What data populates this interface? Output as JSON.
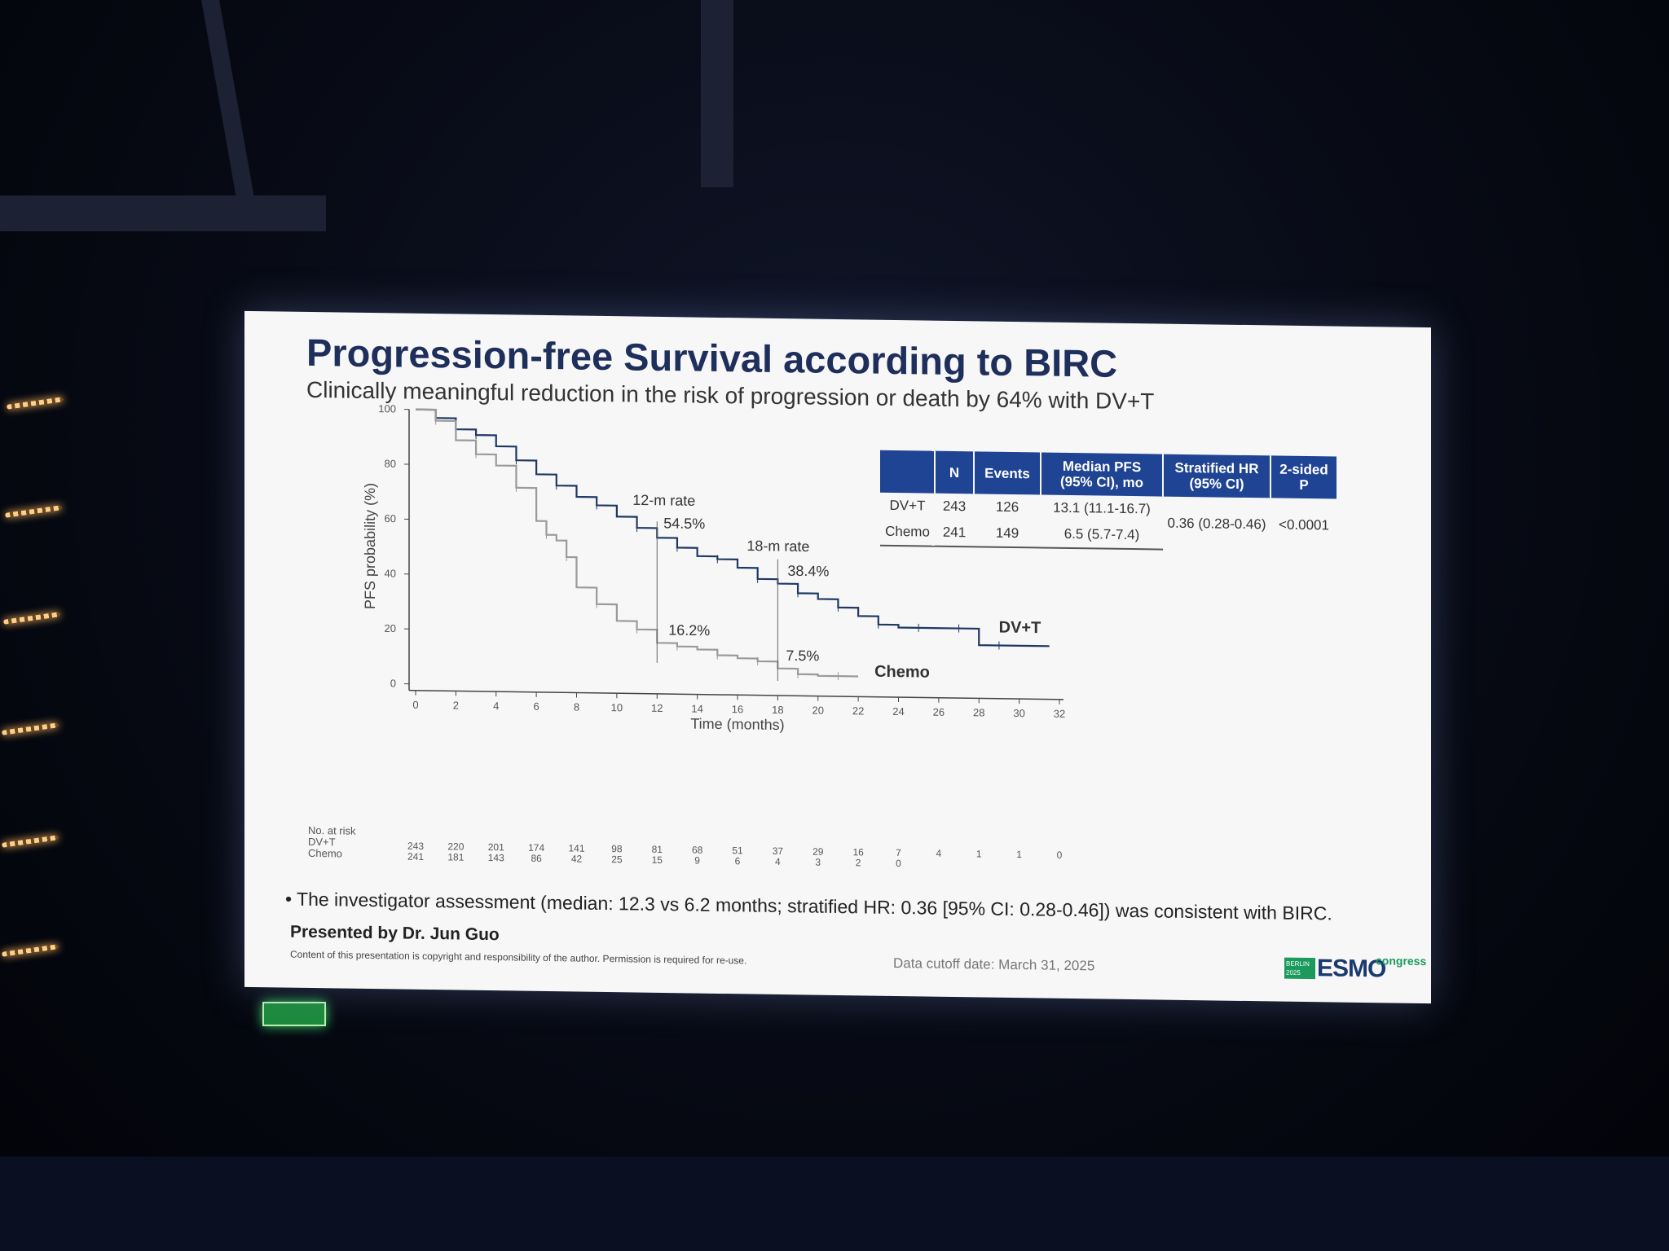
{
  "slide": {
    "title": "Progression-free Survival according to BIRC",
    "subtitle": "Clinically meaningful reduction in the risk of progression or death by 64% with DV+T",
    "bullet": "• The investigator assessment (median: 12.3 vs 6.2 months; stratified HR: 0.36 [95% CI: 0.28-0.46]) was consistent with BIRC.",
    "presenter": "Presented by Dr. Jun Guo",
    "copyright": "Content of this presentation is copyright and responsibility of the author. Permission is required for re-use.",
    "cutoff": "Data cutoff date: March 31, 2025",
    "logo": {
      "tag": "BERLIN 2025",
      "word": "ESMO",
      "congress": "congress"
    }
  },
  "summary_table": {
    "headers": [
      "",
      "N",
      "Events",
      "Median PFS (95% CI), mo",
      "Stratified HR (95% CI)",
      "2-sided P"
    ],
    "rows": [
      {
        "arm": "DV+T",
        "n": "243",
        "events": "126",
        "median": "13.1 (11.1-16.7)"
      },
      {
        "arm": "Chemo",
        "n": "241",
        "events": "149",
        "median": "6.5 (5.7-7.4)"
      }
    ],
    "hr": "0.36 (0.28-0.46)",
    "p": "<0.0001",
    "header_color": "#1f4494"
  },
  "risk_table": {
    "title": "No. at risk",
    "arms": [
      "DV+T",
      "Chemo"
    ],
    "times": [
      0,
      2,
      4,
      6,
      8,
      10,
      12,
      14,
      16,
      18,
      20,
      22,
      24,
      26,
      28,
      30,
      32
    ],
    "dvt": [
      "243",
      "220",
      "201",
      "174",
      "141",
      "98",
      "81",
      "68",
      "51",
      "37",
      "29",
      "16",
      "7",
      "4",
      "1",
      "1",
      "0"
    ],
    "chemo": [
      "241",
      "181",
      "143",
      "86",
      "42",
      "25",
      "15",
      "9",
      "6",
      "4",
      "3",
      "2",
      "0",
      "",
      "",
      "",
      ""
    ]
  },
  "chart_data": {
    "type": "line",
    "xlabel": "Time (months)",
    "ylabel": "PFS probability (%)",
    "xlim": [
      0,
      32
    ],
    "ylim": [
      0,
      100
    ],
    "xticks": [
      0,
      2,
      4,
      6,
      8,
      10,
      12,
      14,
      16,
      18,
      20,
      22,
      24,
      26,
      28,
      30,
      32
    ],
    "yticks": [
      0,
      20,
      40,
      60,
      80,
      100
    ],
    "series": [
      {
        "name": "DV+T",
        "color": "#1f3864",
        "x": [
          0,
          1,
          2,
          3,
          4,
          5,
          6,
          7,
          8,
          9,
          10,
          11,
          12,
          13,
          14,
          15,
          16,
          17,
          18,
          19,
          20,
          21,
          22,
          23,
          24,
          25,
          26,
          27,
          28,
          29,
          31.5
        ],
        "y": [
          100,
          97,
          93,
          91,
          87,
          82,
          77,
          73,
          69,
          66,
          62,
          58,
          54.5,
          51,
          48,
          47,
          44,
          40,
          38.4,
          35,
          33,
          30,
          27,
          24,
          23,
          23,
          23,
          23,
          17,
          17,
          17
        ]
      },
      {
        "name": "Chemo",
        "color": "#9a9a9a",
        "x": [
          0,
          1,
          2,
          3,
          4,
          5,
          6,
          6.5,
          7,
          7.5,
          8,
          9,
          10,
          11,
          12,
          13,
          14,
          15,
          16,
          17,
          18,
          19,
          20,
          21,
          22
        ],
        "y": [
          100,
          96,
          89,
          84,
          80,
          72,
          60,
          55,
          53,
          47,
          36,
          30,
          24,
          21,
          16.2,
          15,
          14,
          12,
          11,
          10,
          7.5,
          5.5,
          5,
          5,
          5
        ]
      }
    ],
    "annotations": [
      {
        "label": "12-m rate",
        "x": 12
      },
      {
        "label": "54.5%",
        "x": 12,
        "y": 54.5
      },
      {
        "label": "16.2%",
        "x": 12,
        "y": 16.2
      },
      {
        "label": "18-m rate",
        "x": 18
      },
      {
        "label": "38.4%",
        "x": 18,
        "y": 38.4
      },
      {
        "label": "7.5%",
        "x": 18,
        "y": 7.5
      }
    ]
  }
}
